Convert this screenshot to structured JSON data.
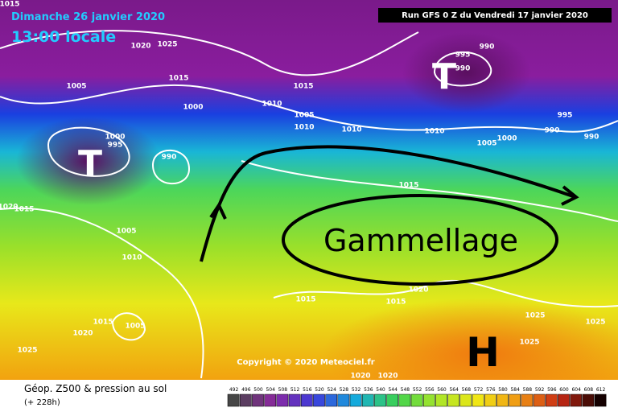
{
  "header": {
    "date": "Dimanche 26 janvier 2020",
    "time": "13:00 locale",
    "run": "Run GFS 0 Z du Vendredi 17 janvier 2020"
  },
  "map": {
    "lows": [
      "T",
      "T"
    ],
    "high": "H",
    "annotation": "Gammellage",
    "copyright": "Copyright © 2020 Meteociel.fr",
    "isobars": [
      1015,
      1020,
      1025,
      1005,
      1015,
      1000,
      1000,
      995,
      990,
      1010,
      1005,
      1010,
      1015,
      1010,
      1010,
      995,
      990,
      990,
      995,
      990,
      990,
      1000,
      1005,
      1015,
      1020,
      1015,
      1005,
      1010,
      1015,
      1015,
      1020,
      1015,
      1005,
      1020,
      1025,
      1025,
      1025,
      1025,
      1020,
      1020
    ]
  },
  "footer": {
    "title": "Géop. Z500 & pression au sol",
    "lead": "(+ 228h)",
    "scale": [
      492,
      496,
      500,
      504,
      508,
      512,
      516,
      520,
      524,
      528,
      532,
      536,
      540,
      544,
      548,
      552,
      556,
      560,
      564,
      568,
      572,
      576,
      580,
      584,
      588,
      592,
      596,
      600,
      604,
      608,
      612
    ]
  }
}
